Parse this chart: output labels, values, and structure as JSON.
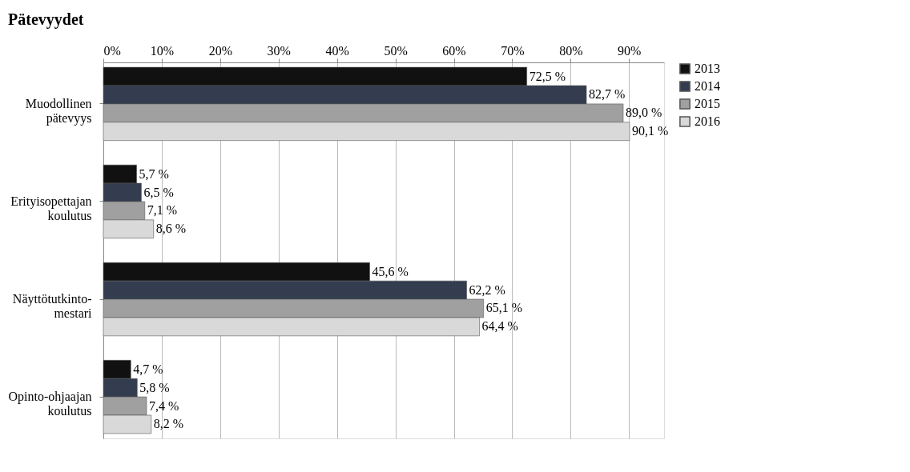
{
  "chart_data": {
    "type": "bar",
    "orientation": "horizontal",
    "title": "Pätevyydet",
    "categories": [
      "Muodollinen\npätevyys",
      "Erityisopettajan\nkoulutus",
      "Näyttötutkinto-\nmestari",
      "Opinto-ohjaajan\nkoulutus"
    ],
    "series": [
      {
        "name": "2013",
        "color": "#111111",
        "values": [
          72.5,
          5.7,
          45.6,
          4.7
        ],
        "value_labels": [
          "72,5 %",
          "5,7 %",
          "45,6 %",
          "4,7 %"
        ]
      },
      {
        "name": "2014",
        "color": "#333d4f",
        "values": [
          82.7,
          6.5,
          62.2,
          5.8
        ],
        "value_labels": [
          "82,7 %",
          "6,5 %",
          "62,2 %",
          "5,8 %"
        ]
      },
      {
        "name": "2015",
        "color": "#a0a0a0",
        "values": [
          89.0,
          7.1,
          65.1,
          7.4
        ],
        "value_labels": [
          "89,0 %",
          "7,1 %",
          "65,1 %",
          "7,4 %"
        ]
      },
      {
        "name": "2016",
        "color": "#d9d9d9",
        "values": [
          90.1,
          8.6,
          64.4,
          8.2
        ],
        "value_labels": [
          "90,1 %",
          "8,6 %",
          "64,4 %",
          "8,2 %"
        ]
      }
    ],
    "xlim": [
      0,
      96
    ],
    "xticks": [
      {
        "value": 0,
        "label": "0%"
      },
      {
        "value": 10,
        "label": "10%"
      },
      {
        "value": 20,
        "label": "20%"
      },
      {
        "value": 30,
        "label": "30%"
      },
      {
        "value": 40,
        "label": "40%"
      },
      {
        "value": 50,
        "label": "50%"
      },
      {
        "value": 60,
        "label": "60%"
      },
      {
        "value": 70,
        "label": "70%"
      },
      {
        "value": 80,
        "label": "80%"
      },
      {
        "value": 90,
        "label": "90%"
      }
    ],
    "grid": "x",
    "legend": "right"
  }
}
